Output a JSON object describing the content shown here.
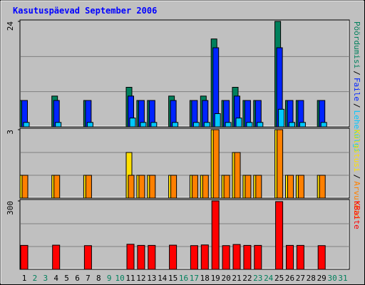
{
  "chart_data": {
    "type": "bar",
    "title": "Kasutuspäevad September 2006",
    "categories": [
      "1",
      "2",
      "3",
      "4",
      "5",
      "6",
      "7",
      "8",
      "9",
      "10",
      "11",
      "12",
      "13",
      "14",
      "15",
      "16",
      "17",
      "18",
      "19",
      "20",
      "21",
      "22",
      "23",
      "24",
      "25",
      "26",
      "27",
      "28",
      "29",
      "30",
      "31"
    ],
    "category_colors": [
      "#000000",
      "#00805c",
      "#00805c",
      "#000000",
      "#000000",
      "#000000",
      "#000000",
      "#000000",
      "#00805c",
      "#00805c",
      "#000000",
      "#000000",
      "#000000",
      "#000000",
      "#000000",
      "#00805c",
      "#00805c",
      "#000000",
      "#000000",
      "#000000",
      "#000000",
      "#000000",
      "#00805c",
      "#00805c",
      "#000000",
      "#000000",
      "#000000",
      "#000000",
      "#000000",
      "#00805c",
      "#00805c"
    ],
    "label_separator": "/",
    "panels": [
      {
        "ylim": [
          0,
          24
        ],
        "yticks": [
          24
        ],
        "grid": [
          8,
          16
        ],
        "series": [
          {
            "name": "Pöördumisi",
            "color": "#00805c",
            "values": [
              6,
              0,
              0,
              7,
              0,
              0,
              6,
              0,
              0,
              0,
              9,
              6,
              6,
              0,
              7,
              0,
              6,
              7,
              20,
              6,
              9,
              6,
              6,
              0,
              24,
              6,
              6,
              0,
              6,
              0,
              0
            ]
          },
          {
            "name": "Faile",
            "color": "#0024ff",
            "values": [
              6,
              0,
              0,
              6,
              0,
              0,
              6,
              0,
              0,
              0,
              7,
              6,
              6,
              0,
              6,
              0,
              6,
              6,
              18,
              6,
              7,
              6,
              6,
              0,
              18,
              6,
              6,
              0,
              6,
              0,
              0
            ]
          },
          {
            "name": "Lehekülgi",
            "color": "#00c8ff",
            "values": [
              1,
              0,
              0,
              1,
              0,
              0,
              1,
              0,
              0,
              0,
              2,
              1,
              1,
              0,
              1,
              0,
              1,
              1,
              3,
              1,
              2,
              1,
              1,
              0,
              4,
              1,
              1,
              0,
              1,
              0,
              0
            ]
          }
        ]
      },
      {
        "ylim": [
          0,
          3
        ],
        "yticks": [
          3
        ],
        "grid": [
          1,
          2
        ],
        "series": [
          {
            "name": "Külastusi",
            "color": "#ffe000",
            "values": [
              1,
              0,
              0,
              1,
              0,
              0,
              1,
              0,
              0,
              0,
              2,
              1,
              1,
              0,
              1,
              0,
              1,
              1,
              3,
              1,
              2,
              1,
              1,
              0,
              3,
              1,
              1,
              0,
              1,
              0,
              0
            ]
          },
          {
            "name": "Arvuteid",
            "color": "#ff8000",
            "values": [
              1,
              0,
              0,
              1,
              0,
              0,
              1,
              0,
              0,
              0,
              1,
              1,
              1,
              0,
              1,
              0,
              1,
              1,
              3,
              1,
              2,
              1,
              1,
              0,
              3,
              1,
              1,
              0,
              1,
              0,
              0
            ]
          }
        ]
      },
      {
        "ylim": [
          0,
          300
        ],
        "yticks": [
          300
        ],
        "grid": [
          100,
          200
        ],
        "series": [
          {
            "name": "KBaite",
            "color": "#ff0000",
            "values": [
              105,
              0,
              0,
              106,
              0,
              0,
              104,
              0,
              0,
              0,
              110,
              105,
              105,
              0,
              106,
              0,
              104,
              107,
              300,
              104,
              109,
              105,
              105,
              0,
              297,
              105,
              105,
              0,
              104,
              0,
              0
            ]
          }
        ]
      }
    ]
  }
}
